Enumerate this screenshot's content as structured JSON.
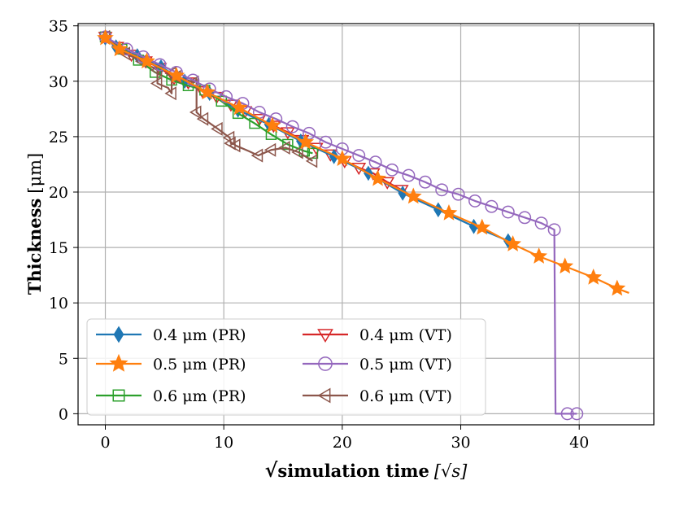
{
  "chart_data": {
    "type": "line",
    "title": "",
    "xlabel_prefix": "√",
    "xlabel_main": "simulation time",
    "xlabel_unit": "[√s]",
    "ylabel_main": "Thickness",
    "ylabel_unit": "[μm]",
    "xlim": [
      -2.3,
      46.3
    ],
    "ylim": [
      -1.0,
      35.2
    ],
    "xticks": [
      0,
      10,
      20,
      30,
      40
    ],
    "yticks": [
      0,
      5,
      10,
      15,
      20,
      25,
      30,
      35
    ],
    "grid": true,
    "legend_position": "lower-left",
    "series": [
      {
        "name": "0.4 μm (PR)",
        "color": "#1f77b4",
        "marker": "diamond",
        "x": [
          0,
          0.9,
          2.7,
          4.7,
          6.7,
          8.8,
          11.2,
          13.8,
          16.5,
          19.3,
          22.2,
          25.1,
          28.1,
          31.1,
          34.0
        ],
        "y": [
          33.9,
          33.1,
          32.3,
          31.3,
          30.0,
          28.9,
          27.4,
          26.1,
          24.6,
          23.2,
          21.7,
          19.9,
          18.4,
          16.9,
          15.6
        ]
      },
      {
        "name": "0.5 μm (PR)",
        "color": "#ff7f0e",
        "marker": "star",
        "x": [
          0,
          1.2,
          3.5,
          6.0,
          8.6,
          11.3,
          14.1,
          16.9,
          20.0,
          23.0,
          26.0,
          29.0,
          31.8,
          34.4,
          36.6,
          38.8,
          41.2,
          43.2,
          44.2
        ],
        "y": [
          33.9,
          32.9,
          31.8,
          30.5,
          29.0,
          27.6,
          26.0,
          24.5,
          23.0,
          21.2,
          19.6,
          18.1,
          16.8,
          15.3,
          14.2,
          13.3,
          12.3,
          11.3,
          10.9
        ],
        "marker_every": [
          0,
          1,
          2,
          3,
          4,
          5,
          6,
          7,
          8,
          9,
          10,
          11,
          12,
          13,
          14,
          15,
          16,
          17
        ]
      },
      {
        "name": "0.6 μm (PR)",
        "color": "#2ca02c",
        "marker": "square",
        "x": [
          0,
          1.4,
          2.8,
          4.2,
          5.6,
          7.0,
          8.4,
          9.8,
          11.2,
          12.6,
          14.0,
          15.4,
          16.8,
          17.5
        ],
        "y": [
          34.0,
          32.9,
          31.9,
          30.8,
          30.1,
          29.6,
          29.2,
          28.2,
          27.1,
          26.2,
          25.2,
          24.3,
          23.7,
          23.5
        ]
      },
      {
        "name": "0.4 μm (VT)",
        "color": "#d62728",
        "marker": "triangle-down",
        "x": [
          0,
          1.0,
          2.2,
          3.4,
          4.6,
          5.8,
          7.0,
          8.2,
          9.4,
          10.6,
          11.8,
          13.0,
          14.2,
          15.4,
          16.6,
          17.8,
          19.0,
          20.2,
          21.4,
          22.6,
          23.8,
          25.0
        ],
        "y": [
          34.0,
          33.1,
          32.4,
          31.8,
          31.2,
          30.3,
          29.9,
          29.1,
          28.6,
          27.9,
          27.3,
          26.6,
          26.0,
          25.4,
          24.7,
          24.0,
          23.4,
          22.8,
          22.2,
          21.7,
          20.9,
          20.2
        ]
      },
      {
        "name": "0.5 μm (VT)",
        "color": "#9467bd",
        "marker": "circle",
        "x": [
          0,
          1.8,
          3.2,
          4.6,
          6.0,
          7.4,
          8.8,
          10.2,
          11.6,
          13.0,
          14.4,
          15.8,
          17.2,
          18.6,
          20.0,
          21.4,
          22.8,
          24.2,
          25.6,
          27.0,
          28.4,
          29.8,
          31.2,
          32.6,
          34.0,
          35.4,
          36.8,
          37.9,
          38.0,
          39.0,
          39.8
        ],
        "y": [
          34.0,
          32.9,
          32.2,
          31.5,
          30.8,
          30.1,
          29.3,
          28.6,
          28.0,
          27.2,
          26.6,
          25.9,
          25.3,
          24.5,
          23.9,
          23.3,
          22.7,
          22.0,
          21.5,
          20.9,
          20.2,
          19.8,
          19.2,
          18.7,
          18.2,
          17.7,
          17.2,
          16.6,
          0.0,
          0.0,
          0.0
        ],
        "marker_every": [
          0,
          1,
          2,
          3,
          4,
          5,
          6,
          7,
          8,
          9,
          10,
          11,
          12,
          13,
          14,
          15,
          16,
          17,
          18,
          19,
          20,
          21,
          22,
          23,
          24,
          25,
          26,
          27,
          29,
          30
        ]
      },
      {
        "name": "0.6 μm (VT)",
        "color": "#8c564b",
        "marker": "triangle-left",
        "x": [
          0,
          1.7,
          3.1,
          4.4,
          4.4,
          5.3,
          5.6,
          5.6,
          6.0,
          6.9,
          7.5,
          7.7,
          7.7,
          8.3,
          9.5,
          10.5,
          10.6,
          10.9,
          11.0,
          12.1,
          12.9,
          14.0,
          15.2,
          16.3,
          17.5
        ],
        "y": [
          34.0,
          32.5,
          31.8,
          31.0,
          29.8,
          29.4,
          28.9,
          30.7,
          30.4,
          30.1,
          29.9,
          30.2,
          27.2,
          26.6,
          25.7,
          24.9,
          24.4,
          24.3,
          24.2,
          23.7,
          23.3,
          23.8,
          24.0,
          23.6,
          22.8
        ],
        "marker_every": [
          0,
          1,
          2,
          3,
          4,
          6,
          7,
          8,
          10,
          12,
          13,
          14,
          15,
          16,
          18,
          20,
          21,
          22,
          23,
          24
        ]
      }
    ]
  }
}
